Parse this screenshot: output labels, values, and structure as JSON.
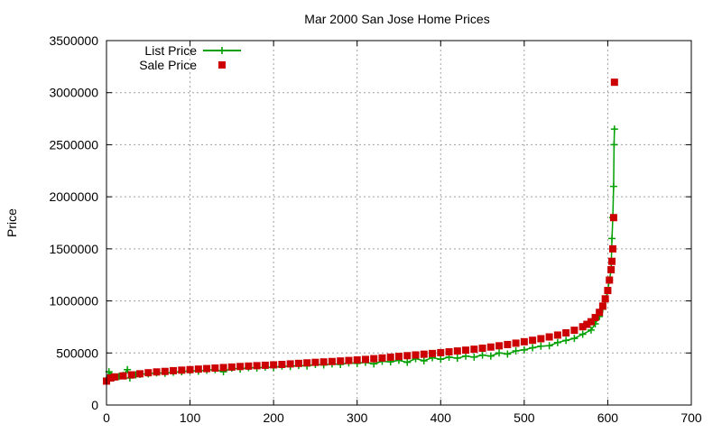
{
  "chart_data": {
    "type": "scatter",
    "title": "Mar 2000 San Jose Home Prices",
    "xlabel": "",
    "ylabel": "Price",
    "xlim": [
      0,
      700
    ],
    "ylim": [
      0,
      3500000
    ],
    "x_ticks": [
      "0",
      "100",
      "200",
      "300",
      "400",
      "500",
      "600",
      "700"
    ],
    "y_ticks": [
      "0",
      "500000",
      "1000000",
      "1500000",
      "2000000",
      "2500000",
      "3000000",
      "3500000"
    ],
    "grid": true,
    "legend_position": "top-left",
    "series": [
      {
        "name": "List Price",
        "style": "line-with-plus-markers",
        "color": "#00a000",
        "points": [
          [
            0,
            240000
          ],
          [
            3,
            320000
          ],
          [
            6,
            290000
          ],
          [
            10,
            270000
          ],
          [
            15,
            275000
          ],
          [
            20,
            285000
          ],
          [
            25,
            340000
          ],
          [
            28,
            260000
          ],
          [
            35,
            290000
          ],
          [
            40,
            295000
          ],
          [
            50,
            300000
          ],
          [
            60,
            310000
          ],
          [
            70,
            305000
          ],
          [
            80,
            315000
          ],
          [
            90,
            320000
          ],
          [
            100,
            330000
          ],
          [
            110,
            325000
          ],
          [
            120,
            335000
          ],
          [
            130,
            340000
          ],
          [
            140,
            320000
          ],
          [
            150,
            355000
          ],
          [
            160,
            345000
          ],
          [
            170,
            360000
          ],
          [
            180,
            355000
          ],
          [
            190,
            365000
          ],
          [
            200,
            360000
          ],
          [
            210,
            375000
          ],
          [
            220,
            370000
          ],
          [
            230,
            380000
          ],
          [
            240,
            375000
          ],
          [
            250,
            390000
          ],
          [
            260,
            385000
          ],
          [
            270,
            395000
          ],
          [
            280,
            390000
          ],
          [
            290,
            405000
          ],
          [
            300,
            400000
          ],
          [
            310,
            410000
          ],
          [
            320,
            395000
          ],
          [
            330,
            420000
          ],
          [
            340,
            415000
          ],
          [
            350,
            430000
          ],
          [
            360,
            410000
          ],
          [
            370,
            445000
          ],
          [
            380,
            425000
          ],
          [
            390,
            455000
          ],
          [
            400,
            440000
          ],
          [
            410,
            460000
          ],
          [
            420,
            450000
          ],
          [
            430,
            470000
          ],
          [
            440,
            460000
          ],
          [
            450,
            480000
          ],
          [
            460,
            470000
          ],
          [
            470,
            500000
          ],
          [
            480,
            490000
          ],
          [
            490,
            520000
          ],
          [
            500,
            530000
          ],
          [
            510,
            550000
          ],
          [
            520,
            565000
          ],
          [
            530,
            570000
          ],
          [
            540,
            600000
          ],
          [
            550,
            620000
          ],
          [
            560,
            640000
          ],
          [
            570,
            680000
          ],
          [
            580,
            720000
          ],
          [
            585,
            780000
          ],
          [
            590,
            850000
          ],
          [
            594,
            920000
          ],
          [
            597,
            1000000
          ],
          [
            600,
            1100000
          ],
          [
            602,
            1200000
          ],
          [
            604,
            1300000
          ],
          [
            605,
            1600000
          ],
          [
            606,
            1800000
          ],
          [
            607,
            2100000
          ],
          [
            607.5,
            2500000
          ],
          [
            608,
            2650000
          ]
        ]
      },
      {
        "name": "Sale Price",
        "style": "square-markers",
        "color": "#cc0000",
        "points": [
          [
            0,
            230000
          ],
          [
            5,
            260000
          ],
          [
            10,
            270000
          ],
          [
            20,
            280000
          ],
          [
            30,
            290000
          ],
          [
            40,
            300000
          ],
          [
            50,
            310000
          ],
          [
            60,
            318000
          ],
          [
            70,
            323000
          ],
          [
            80,
            330000
          ],
          [
            90,
            335000
          ],
          [
            100,
            340000
          ],
          [
            110,
            345000
          ],
          [
            120,
            350000
          ],
          [
            130,
            355000
          ],
          [
            140,
            360000
          ],
          [
            150,
            365000
          ],
          [
            160,
            370000
          ],
          [
            170,
            374000
          ],
          [
            180,
            378000
          ],
          [
            190,
            382000
          ],
          [
            200,
            386000
          ],
          [
            210,
            390000
          ],
          [
            220,
            395000
          ],
          [
            230,
            400000
          ],
          [
            240,
            405000
          ],
          [
            250,
            410000
          ],
          [
            260,
            414000
          ],
          [
            270,
            418000
          ],
          [
            280,
            423000
          ],
          [
            290,
            428000
          ],
          [
            300,
            433000
          ],
          [
            310,
            438000
          ],
          [
            320,
            445000
          ],
          [
            330,
            452000
          ],
          [
            340,
            460000
          ],
          [
            350,
            467000
          ],
          [
            360,
            474000
          ],
          [
            370,
            481000
          ],
          [
            380,
            488000
          ],
          [
            390,
            495000
          ],
          [
            400,
            503000
          ],
          [
            410,
            511000
          ],
          [
            420,
            519000
          ],
          [
            430,
            527000
          ],
          [
            440,
            536000
          ],
          [
            450,
            546000
          ],
          [
            460,
            557000
          ],
          [
            470,
            569000
          ],
          [
            480,
            581000
          ],
          [
            490,
            594000
          ],
          [
            500,
            608000
          ],
          [
            510,
            622000
          ],
          [
            520,
            637000
          ],
          [
            530,
            654000
          ],
          [
            540,
            672000
          ],
          [
            550,
            693000
          ],
          [
            560,
            718000
          ],
          [
            570,
            752000
          ],
          [
            575,
            775000
          ],
          [
            580,
            800000
          ],
          [
            585,
            840000
          ],
          [
            590,
            890000
          ],
          [
            594,
            950000
          ],
          [
            597,
            1020000
          ],
          [
            600,
            1100000
          ],
          [
            602,
            1200000
          ],
          [
            604,
            1300000
          ],
          [
            605,
            1380000
          ],
          [
            606,
            1500000
          ],
          [
            607,
            1800000
          ],
          [
            608,
            3100000
          ]
        ]
      }
    ]
  }
}
